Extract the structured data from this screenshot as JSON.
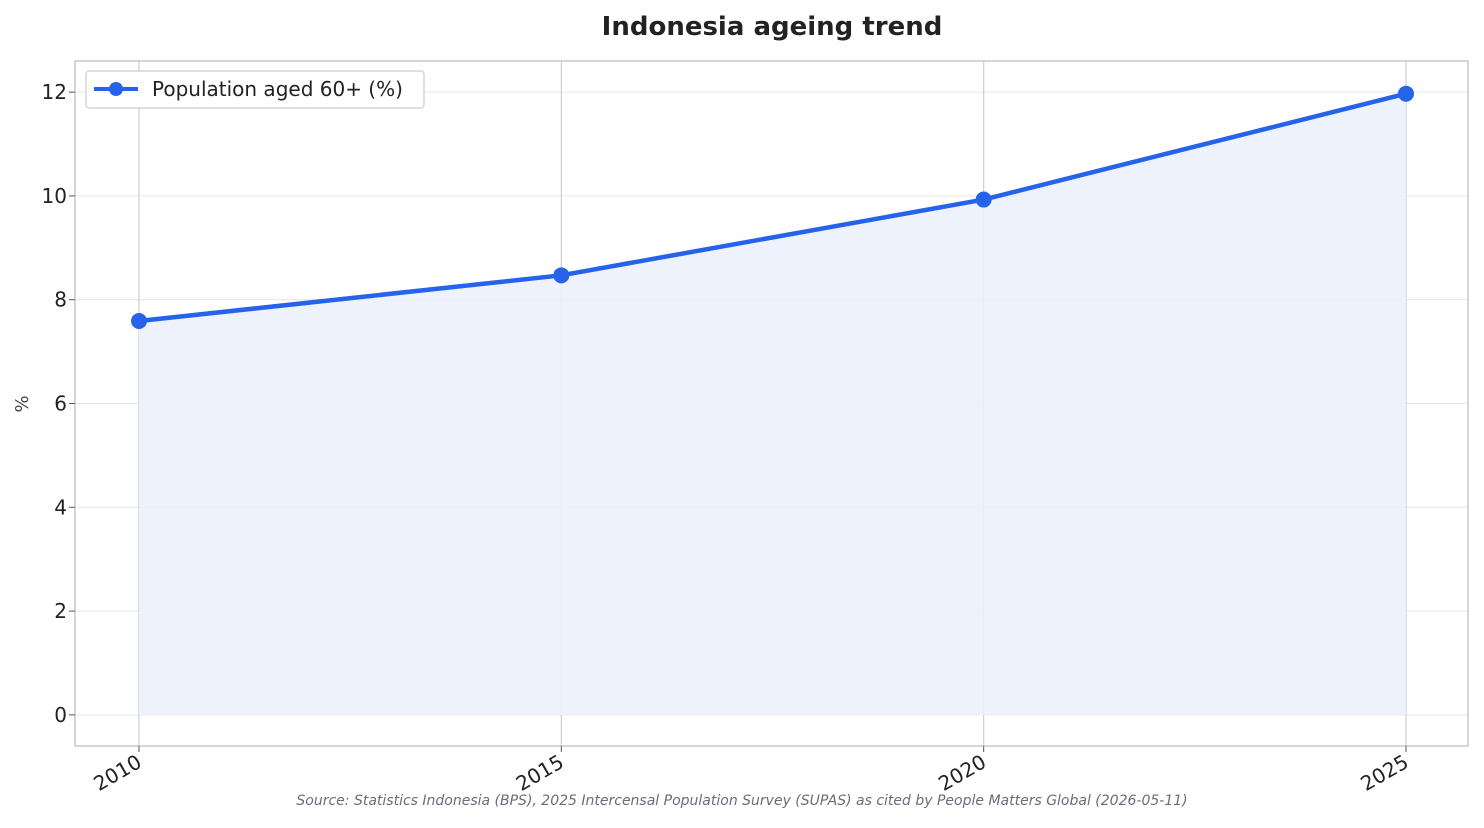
{
  "chart_data": {
    "type": "area",
    "title": "Indonesia ageing trend",
    "xlabel": "",
    "ylabel": "%",
    "x": [
      "2010",
      "2015",
      "2020",
      "2025"
    ],
    "series": [
      {
        "name": "Population aged 60+ (%)",
        "values": [
          7.59,
          8.47,
          9.93,
          11.97
        ]
      }
    ],
    "ylim": [
      -0.6,
      12.6
    ],
    "yticks": [
      "0",
      "2",
      "4",
      "6",
      "8",
      "10",
      "12"
    ],
    "grid": true,
    "legend": "top-left",
    "source": "Source: Statistics Indonesia (BPS), 2025 Intercensal Population Survey (SUPAS) as cited by People Matters Global (2026-05-11)"
  },
  "colors": {
    "line": "#2563eb",
    "fill": "#ebf1fc",
    "grid": "#e6e6e6",
    "vgrid": "#c9cdd6",
    "frame": "#c8c8c8"
  }
}
